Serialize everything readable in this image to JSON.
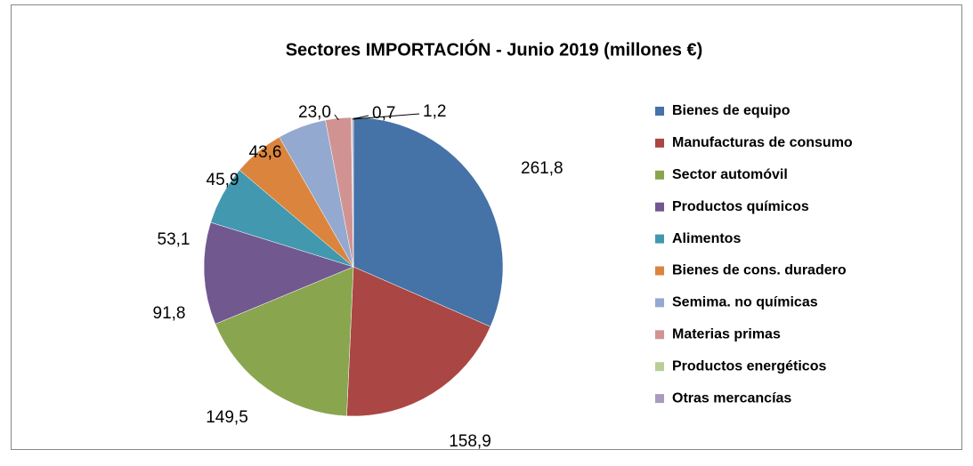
{
  "chart_data": {
    "type": "pie",
    "title": "Sectores IMPORTACIÓN - Junio 2019 (millones €)",
    "categories": [
      "Bienes de equipo",
      "Manufacturas de consumo",
      "Sector automóvil",
      "Productos químicos",
      "Alimentos",
      "Bienes de cons. duradero",
      "Semima. no químicas",
      "Materias primas",
      "Productos energéticos",
      "Otras mercancías"
    ],
    "values": [
      261.8,
      158.9,
      149.5,
      91.8,
      53.1,
      45.9,
      43.6,
      23.0,
      0.7,
      1.2
    ],
    "value_labels": [
      "261,8",
      "158,9",
      "149,5",
      "91,8",
      "53,1",
      "45,9",
      "43,6",
      "23,0",
      "0,7",
      "1,2"
    ],
    "colors": [
      "#4572A7",
      "#AA4643",
      "#89A54E",
      "#71588F",
      "#4198AF",
      "#DB843D",
      "#93A9CF",
      "#D19392",
      "#B9CD96",
      "#A99BBD"
    ],
    "legend": "right"
  }
}
